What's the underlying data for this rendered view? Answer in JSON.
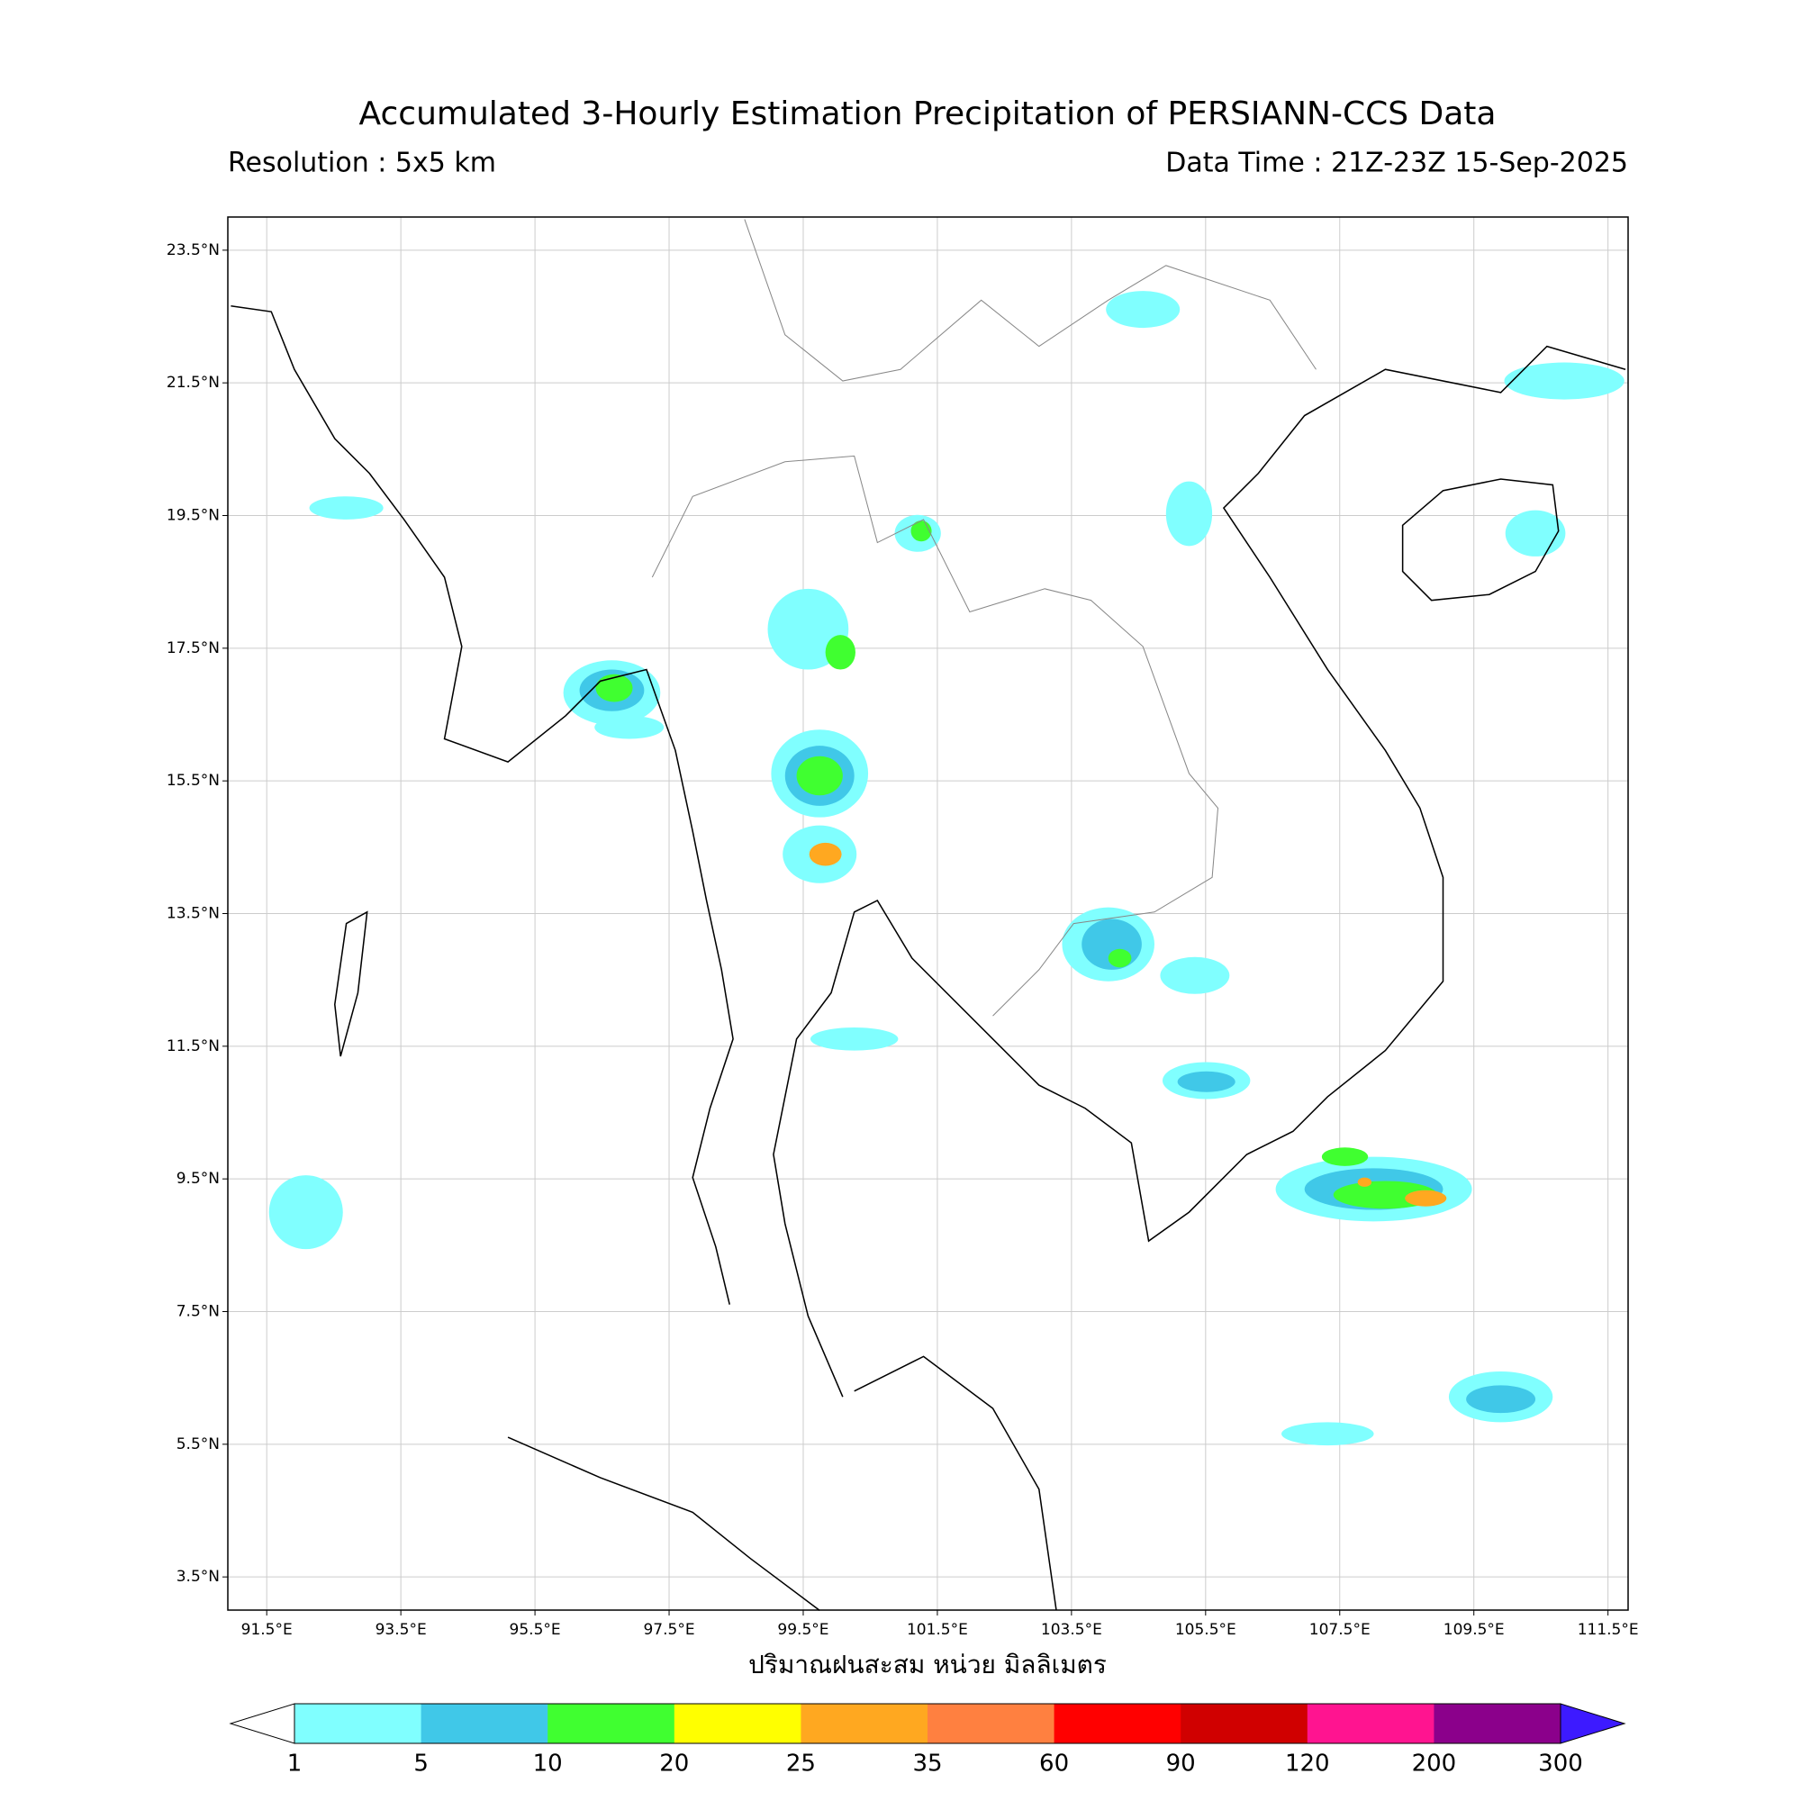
{
  "header": {
    "title": "Accumulated 3-Hourly Estimation Precipitation of PERSIANN-CCS Data",
    "resolution": "Resolution : 5x5 km",
    "data_time": "Data Time : 21Z-23Z 15-Sep-2025"
  },
  "map": {
    "xlim": [
      90.92,
      111.8
    ],
    "ylim": [
      3.0,
      24.0
    ],
    "grid": true,
    "xticks": [
      {
        "value": 91.5,
        "label": "91.5°E"
      },
      {
        "value": 93.5,
        "label": "93.5°E"
      },
      {
        "value": 95.5,
        "label": "95.5°E"
      },
      {
        "value": 97.5,
        "label": "97.5°E"
      },
      {
        "value": 99.5,
        "label": "99.5°E"
      },
      {
        "value": 101.5,
        "label": "101.5°E"
      },
      {
        "value": 103.5,
        "label": "103.5°E"
      },
      {
        "value": 105.5,
        "label": "105.5°E"
      },
      {
        "value": 107.5,
        "label": "107.5°E"
      },
      {
        "value": 109.5,
        "label": "109.5°E"
      },
      {
        "value": 111.5,
        "label": "111.5°E"
      }
    ],
    "yticks": [
      {
        "value": 3.5,
        "label": "3.5°N"
      },
      {
        "value": 5.5,
        "label": "5.5°N"
      },
      {
        "value": 7.5,
        "label": "7.5°N"
      },
      {
        "value": 9.5,
        "label": "9.5°N"
      },
      {
        "value": 11.5,
        "label": "11.5°N"
      },
      {
        "value": 13.5,
        "label": "13.5°N"
      },
      {
        "value": 15.5,
        "label": "15.5°N"
      },
      {
        "value": 17.5,
        "label": "17.5°N"
      },
      {
        "value": 19.5,
        "label": "19.5°N"
      },
      {
        "value": 21.5,
        "label": "21.5°N"
      },
      {
        "value": 23.5,
        "label": "23.5°N"
      }
    ],
    "xlabel": "ปริมาณฝนสะสม หน่วย มิลลิเมตร"
  },
  "colorbar": {
    "levels": [
      1,
      5,
      10,
      20,
      25,
      35,
      60,
      90,
      120,
      200,
      300
    ],
    "colors": [
      "#80ffff",
      "#40c8e8",
      "#40ff30",
      "#ffff00",
      "#ffa820",
      "#ff8040",
      "#ff0000",
      "#d00000",
      "#ff1490",
      "#8b008b"
    ],
    "under_color": "#ffffff",
    "over_color": "#3d1aff"
  }
}
